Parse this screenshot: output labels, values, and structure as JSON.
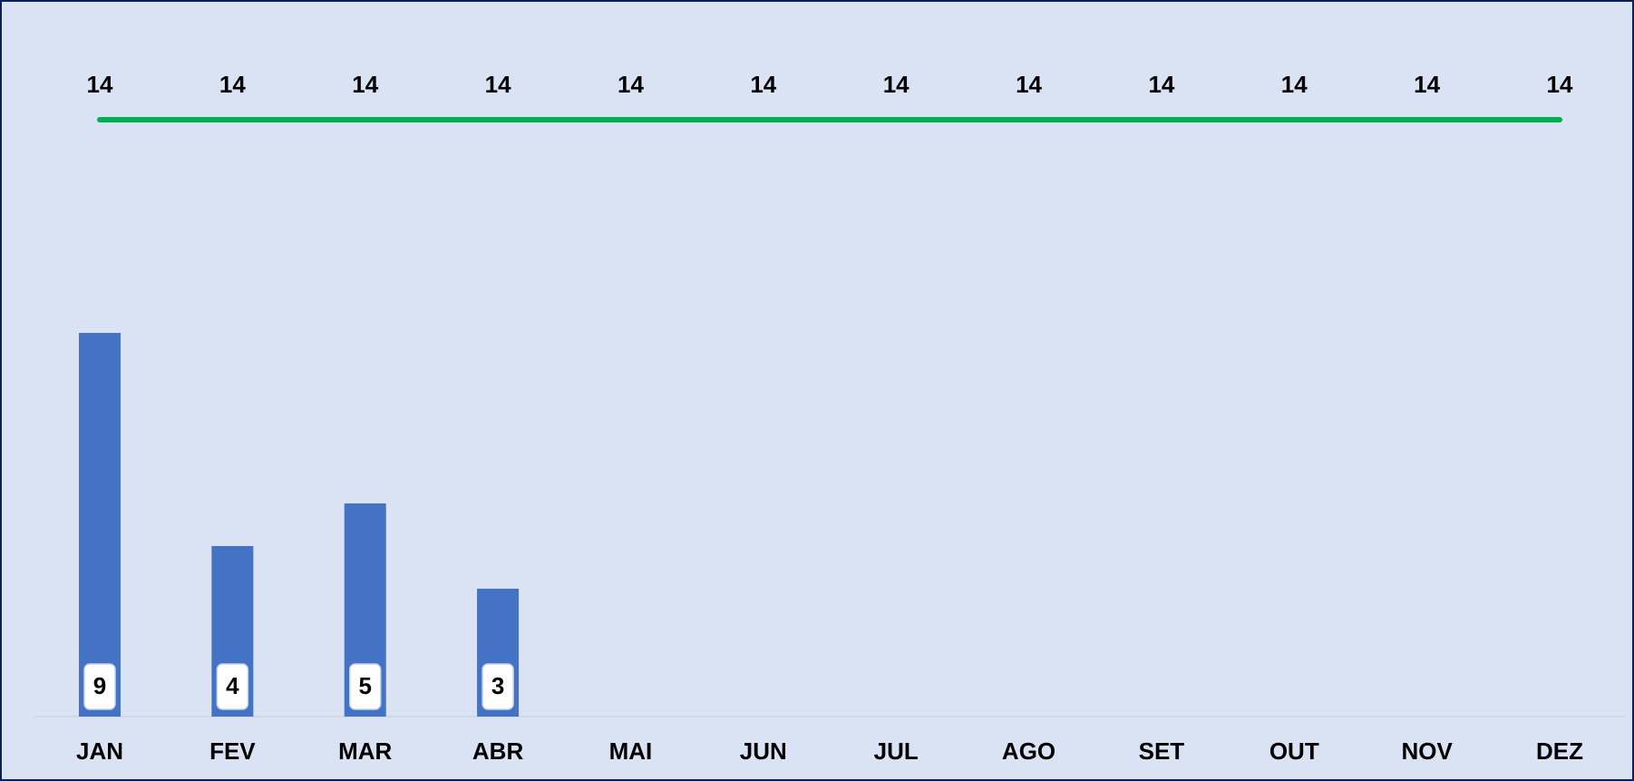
{
  "chart_data": {
    "type": "bar",
    "categories": [
      "JAN",
      "FEV",
      "MAR",
      "ABR",
      "MAI",
      "JUN",
      "JUL",
      "AGO",
      "SET",
      "OUT",
      "NOV",
      "DEZ"
    ],
    "series": [
      {
        "type": "bar",
        "color": "#4472c4",
        "values": [
          9,
          4,
          5,
          3,
          null,
          null,
          null,
          null,
          null,
          null,
          null,
          null
        ]
      },
      {
        "type": "line",
        "color": "#00b050",
        "values": [
          14,
          14,
          14,
          14,
          14,
          14,
          14,
          14,
          14,
          14,
          14,
          14
        ]
      }
    ],
    "ylim": [
      0,
      16
    ]
  }
}
